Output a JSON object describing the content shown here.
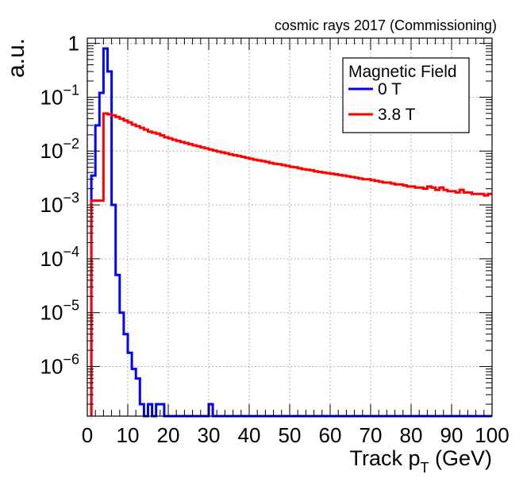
{
  "chart_data": {
    "type": "line",
    "plot_style": "step-histogram",
    "title": "cosmic rays 2017 (Commissioning)",
    "xlabel": "Track p",
    "xlabel_sub": "T",
    "xlabel_unit": " (GeV)",
    "ylabel": "a.u.",
    "xlim": [
      0,
      100
    ],
    "ylim": [
      1.2e-07,
      1.25
    ],
    "yscale": "log",
    "grid": true,
    "legend_position": "top-right",
    "x_ticks": [
      "0",
      "10",
      "20",
      "30",
      "40",
      "50",
      "60",
      "70",
      "80",
      "90",
      "100"
    ],
    "y_ticks": [
      {
        "value": 1,
        "base": "1",
        "exp": ""
      },
      {
        "value": 0.1,
        "base": "10",
        "exp": "−1"
      },
      {
        "value": 0.01,
        "base": "10",
        "exp": "−2"
      },
      {
        "value": 0.001,
        "base": "10",
        "exp": "−3"
      },
      {
        "value": 0.0001,
        "base": "10",
        "exp": "−4"
      },
      {
        "value": 1e-05,
        "base": "10",
        "exp": "−5"
      },
      {
        "value": 1e-06,
        "base": "10",
        "exp": "−6"
      }
    ],
    "legend_title": "Magnetic Field",
    "bin_width": 1,
    "series": [
      {
        "name": "0 T",
        "color": "#0000ff",
        "x_start": 1,
        "values": [
          0.0035,
          0.03,
          0.12,
          0.8,
          0.3,
          0.001,
          5e-05,
          1e-05,
          4e-06,
          1.8e-06,
          9e-07,
          6e-07,
          2e-07,
          0,
          2e-07,
          0,
          2e-07,
          2e-07,
          0,
          0,
          0,
          0,
          0,
          0,
          0,
          0,
          0,
          0,
          0,
          2e-07
        ]
      },
      {
        "name": "3.8 T",
        "color": "#ff0000",
        "x_start": 1,
        "values": [
          0.0012,
          0.0012,
          0.0012,
          0.05,
          0.048,
          0.046,
          0.043,
          0.04,
          0.037,
          0.034,
          0.031,
          0.029,
          0.027,
          0.025,
          0.023,
          0.022,
          0.021,
          0.0195,
          0.018,
          0.0172,
          0.0162,
          0.0155,
          0.0147,
          0.0141,
          0.0134,
          0.0128,
          0.0123,
          0.0117,
          0.0112,
          0.0107,
          0.0102,
          0.0098,
          0.0094,
          0.0091,
          0.0087,
          0.0084,
          0.0081,
          0.0078,
          0.0075,
          0.0072,
          0.0069,
          0.0067,
          0.0065,
          0.0063,
          0.006,
          0.0058,
          0.0057,
          0.0055,
          0.0053,
          0.0051,
          0.005,
          0.0048,
          0.0046,
          0.0045,
          0.0044,
          0.0042,
          0.0041,
          0.004,
          0.0039,
          0.0038,
          0.0037,
          0.0036,
          0.0035,
          0.0034,
          0.0033,
          0.0032,
          0.0031,
          0.003,
          0.003,
          0.0029,
          0.0028,
          0.0027,
          0.0026,
          0.0026,
          0.0025,
          0.0024,
          0.0024,
          0.0023,
          0.0022,
          0.0022,
          0.0021,
          0.0021,
          0.002,
          0.0022,
          0.0021,
          0.0019,
          0.0021,
          0.0019,
          0.0018,
          0.0018,
          0.0017,
          0.0019,
          0.0017,
          0.0017,
          0.0016,
          0.0016,
          0.0016,
          0.0015,
          0.0016
        ]
      }
    ]
  }
}
